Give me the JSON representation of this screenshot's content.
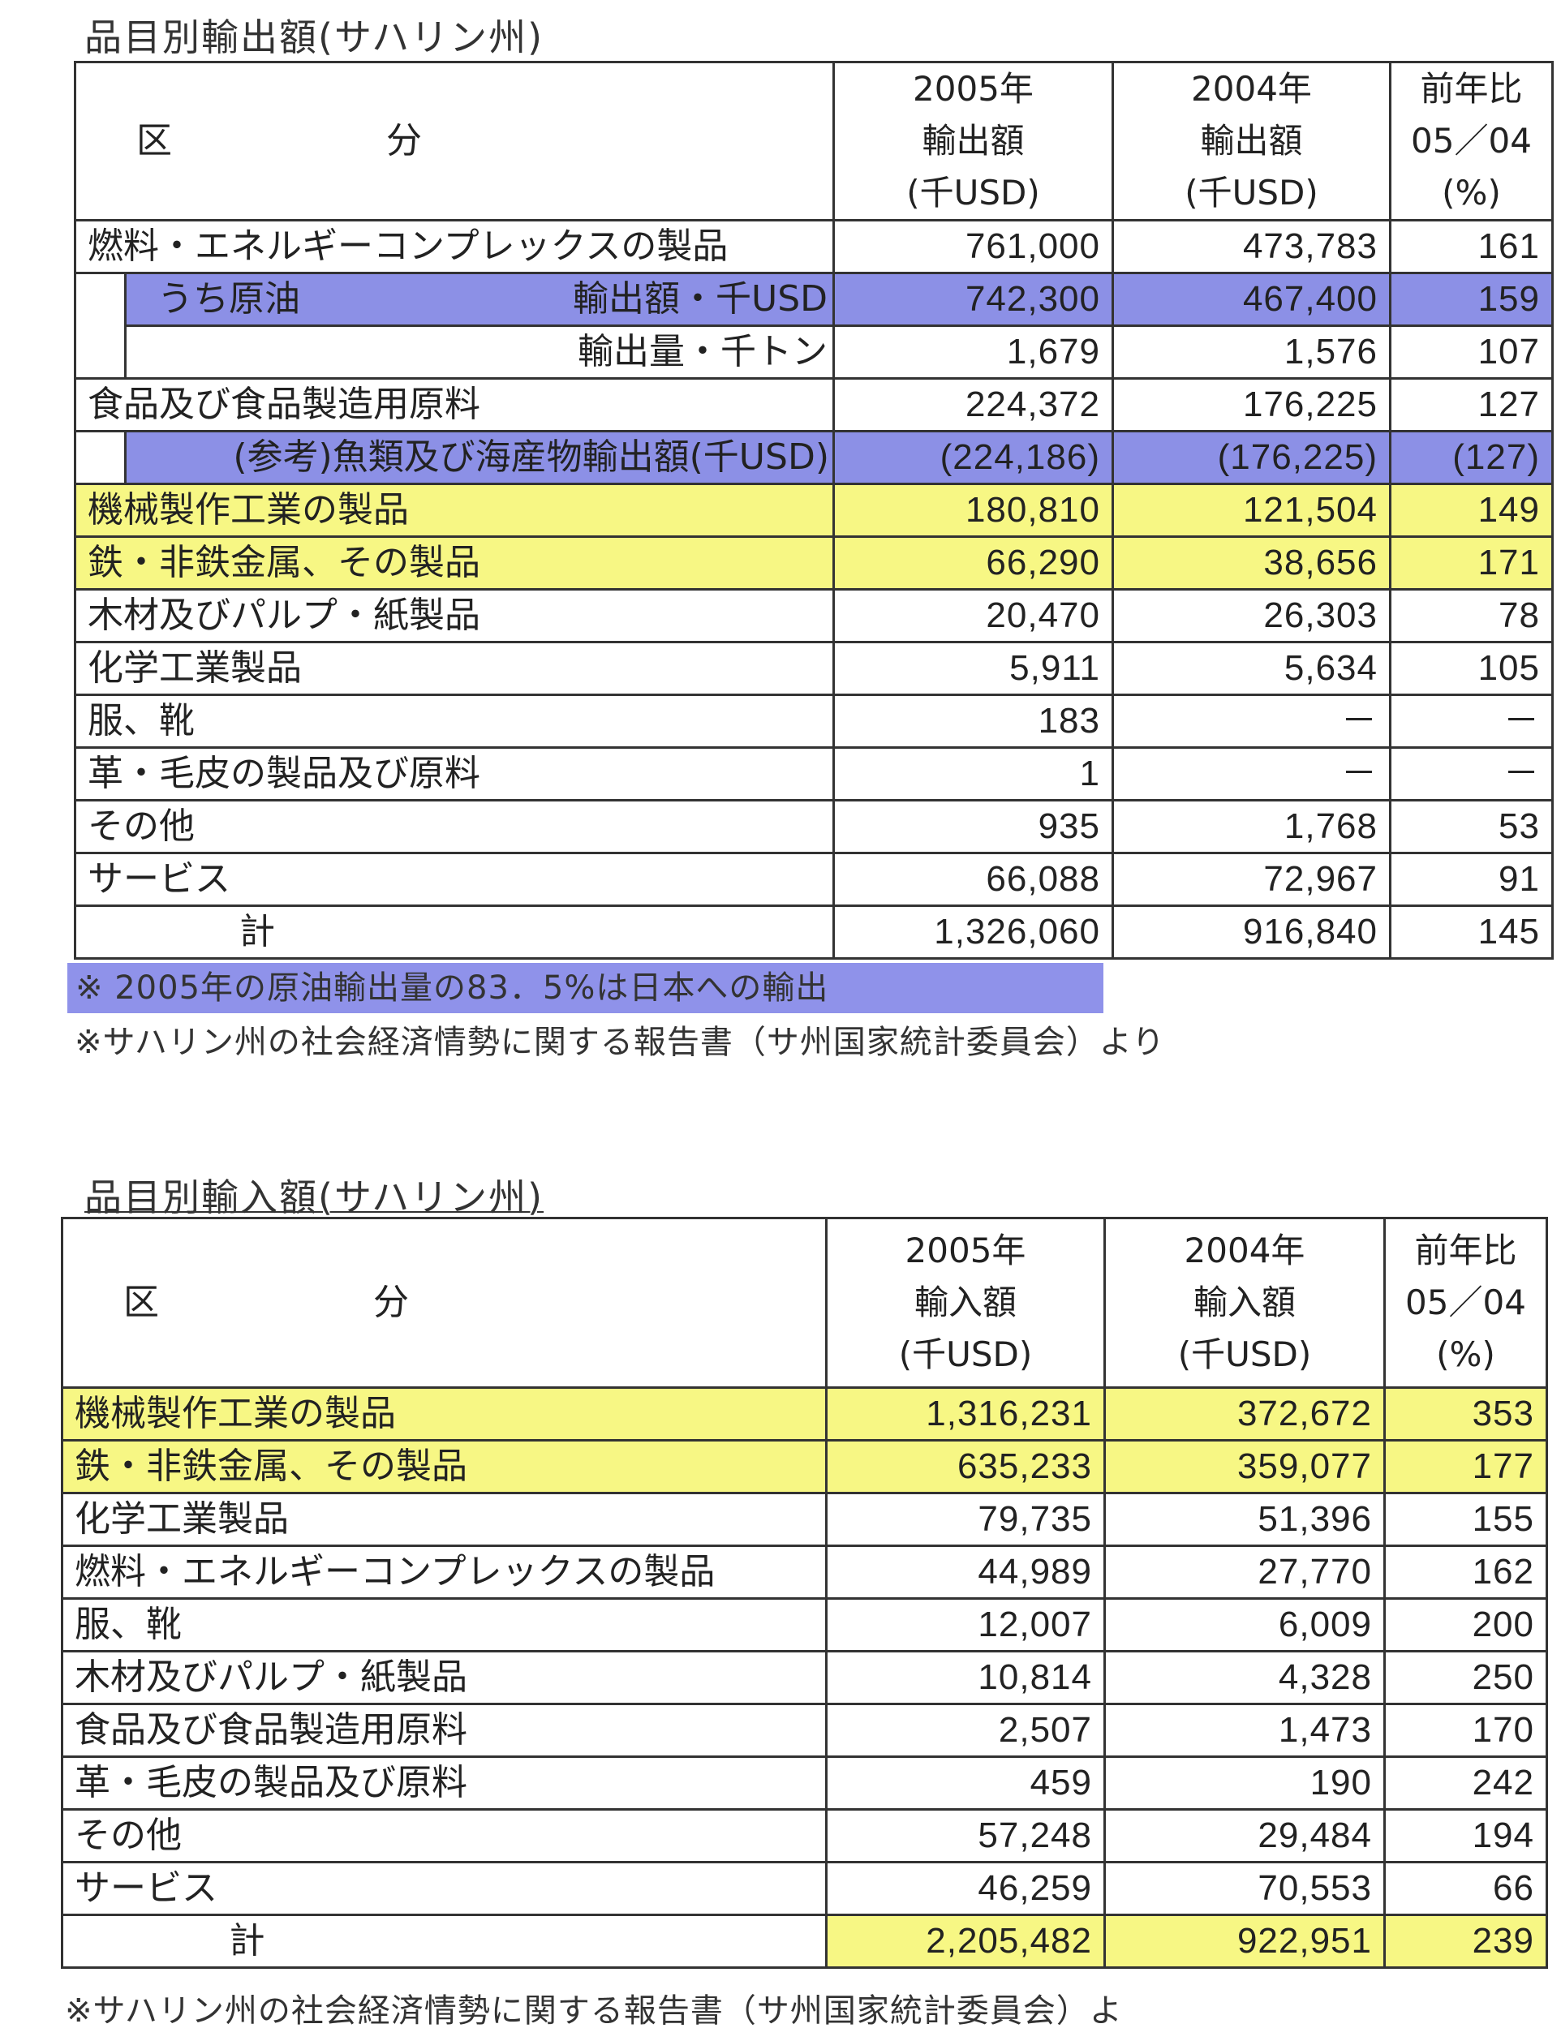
{
  "export_table": {
    "title": "品目別輸出額(サハリン州)",
    "header": {
      "category_a": "区",
      "category_b": "分",
      "col2005": [
        "2005年",
        "輸出額",
        "(千USD)"
      ],
      "col2004": [
        "2004年",
        "輸出額",
        "(千USD)"
      ],
      "ratio": [
        "前年比",
        "05／04",
        "(%)"
      ]
    },
    "rows": [
      {
        "label": "燃料・エネルギーコンプレックスの製品",
        "v2005": "761,000",
        "v2004": "473,783",
        "ratio": "161",
        "highlight": "none"
      },
      {
        "label": "うち原油",
        "sublabel": "輸出額・千USD",
        "v2005": "742,300",
        "v2004": "467,400",
        "ratio": "159",
        "highlight": "#8c90e6"
      },
      {
        "sublabel": "輸出量・千トン",
        "v2005": "1,679",
        "v2004": "1,576",
        "ratio": "107",
        "highlight": "none"
      },
      {
        "label": "食品及び食品製造用原料",
        "v2005": "224,372",
        "v2004": "176,225",
        "ratio": "127",
        "highlight": "none"
      },
      {
        "label": "(参考)魚類及び海産物輸出額(千USD)",
        "v2005": "(224,186)",
        "v2004": "(176,225)",
        "ratio": "(127)",
        "highlight": "#8c90e6"
      },
      {
        "label": "機械製作工業の製品",
        "v2005": "180,810",
        "v2004": "121,504",
        "ratio": "149",
        "highlight": "#f7f784"
      },
      {
        "label": "鉄・非鉄金属、その製品",
        "v2005": "66,290",
        "v2004": "38,656",
        "ratio": "171",
        "highlight": "#f7f784"
      },
      {
        "label": "木材及びパルプ・紙製品",
        "v2005": "20,470",
        "v2004": "26,303",
        "ratio": "78",
        "highlight": "none"
      },
      {
        "label": "化学工業製品",
        "v2005": "5,911",
        "v2004": "5,634",
        "ratio": "105",
        "highlight": "none"
      },
      {
        "label": "服、靴",
        "v2005": "183",
        "v2004": "－",
        "ratio": "－",
        "highlight": "none"
      },
      {
        "label": "革・毛皮の製品及び原料",
        "v2005": "1",
        "v2004": "－",
        "ratio": "－",
        "highlight": "none"
      },
      {
        "label": "その他",
        "v2005": "935",
        "v2004": "1,768",
        "ratio": "53",
        "highlight": "none"
      },
      {
        "label": "サービス",
        "v2005": "66,088",
        "v2004": "72,967",
        "ratio": "91",
        "highlight": "none"
      },
      {
        "label": "計",
        "v2005": "1,326,060",
        "v2004": "916,840",
        "ratio": "145",
        "highlight": "none"
      }
    ],
    "note1": "※ 2005年の原油輸出量の83．5%は日本への輸出",
    "note2": "※サハリン州の社会経済情勢に関する報告書（サ州国家統計委員会）より"
  },
  "import_table": {
    "title": "品目別輸入額(サハリン州)",
    "header": {
      "category_a": "区",
      "category_b": "分",
      "col2005": [
        "2005年",
        "輸入額",
        "(千USD)"
      ],
      "col2004": [
        "2004年",
        "輸入額",
        "(千USD)"
      ],
      "ratio": [
        "前年比",
        "05／04",
        "(%)"
      ]
    },
    "rows": [
      {
        "label": "機械製作工業の製品",
        "v2005": "1,316,231",
        "v2004": "372,672",
        "ratio": "353",
        "highlight": "#f7f784"
      },
      {
        "label": "鉄・非鉄金属、その製品",
        "v2005": "635,233",
        "v2004": "359,077",
        "ratio": "177",
        "highlight": "#f7f784"
      },
      {
        "label": "化学工業製品",
        "v2005": "79,735",
        "v2004": "51,396",
        "ratio": "155",
        "highlight": "none"
      },
      {
        "label": "燃料・エネルギーコンプレックスの製品",
        "v2005": "44,989",
        "v2004": "27,770",
        "ratio": "162",
        "highlight": "none"
      },
      {
        "label": "服、靴",
        "v2005": "12,007",
        "v2004": "6,009",
        "ratio": "200",
        "highlight": "none"
      },
      {
        "label": "木材及びパルプ・紙製品",
        "v2005": "10,814",
        "v2004": "4,328",
        "ratio": "250",
        "highlight": "none"
      },
      {
        "label": "食品及び食品製造用原料",
        "v2005": "2,507",
        "v2004": "1,473",
        "ratio": "170",
        "highlight": "none"
      },
      {
        "label": "革・毛皮の製品及び原料",
        "v2005": "459",
        "v2004": "190",
        "ratio": "242",
        "highlight": "none"
      },
      {
        "label": "その他",
        "v2005": "57,248",
        "v2004": "29,484",
        "ratio": "194",
        "highlight": "none"
      },
      {
        "label": "サービス",
        "v2005": "46,259",
        "v2004": "70,553",
        "ratio": "66",
        "highlight": "none"
      },
      {
        "label": "計",
        "v2005": "2,205,482",
        "v2004": "922,951",
        "ratio": "239",
        "highlight": "values-#f7f784"
      }
    ],
    "note": "※サハリン州の社会経済情勢に関する報告書（サ州国家統計委員会）よ"
  }
}
